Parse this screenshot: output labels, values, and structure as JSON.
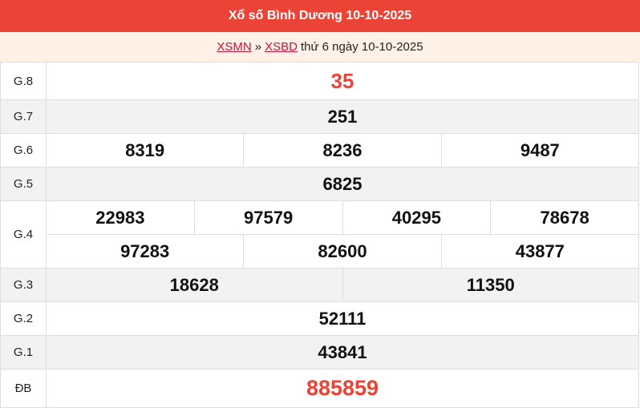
{
  "title": "Xổ số Bình Dương 10-10-2025",
  "breadcrumb": {
    "link1": "XSMN",
    "sep": "»",
    "link2": "XSBD",
    "text": "thứ 6 ngày 10-10-2025"
  },
  "prizes": [
    {
      "label": "G.8",
      "numbers": [
        "35"
      ]
    },
    {
      "label": "G.7",
      "numbers": [
        "251"
      ]
    },
    {
      "label": "G.6",
      "numbers": [
        "8319",
        "8236",
        "9487"
      ]
    },
    {
      "label": "G.5",
      "numbers": [
        "6825"
      ]
    },
    {
      "label": "G.4",
      "numbers": [
        "22983",
        "97579",
        "40295",
        "78678",
        "97283",
        "82600",
        "43877"
      ]
    },
    {
      "label": "G.3",
      "numbers": [
        "18628",
        "11350"
      ]
    },
    {
      "label": "G.2",
      "numbers": [
        "52111"
      ]
    },
    {
      "label": "G.1",
      "numbers": [
        "43841"
      ]
    },
    {
      "label": "ĐB",
      "numbers": [
        "885859"
      ]
    }
  ],
  "colors": {
    "header": "#eb4437",
    "special": "#eb4437",
    "link": "#c4163b"
  }
}
